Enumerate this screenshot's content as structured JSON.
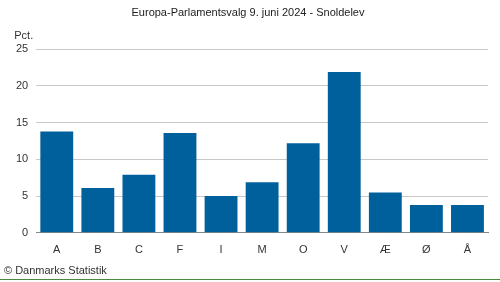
{
  "chart_data": {
    "type": "bar",
    "title": "Europa-Parlamentsvalg 9. juni 2024 - Snoldelev",
    "ylabel": "Pct.",
    "annotations": [
      "© Danmarks Statistik"
    ],
    "categories": [
      "A",
      "B",
      "C",
      "F",
      "I",
      "M",
      "O",
      "V",
      "Æ",
      "Ø",
      "Å"
    ],
    "values": [
      13.8,
      6.1,
      7.9,
      13.6,
      5.0,
      6.9,
      12.2,
      21.9,
      5.5,
      3.8,
      3.8
    ],
    "color": "#00609c",
    "ylim": [
      0,
      25
    ],
    "yticks": [
      0,
      5,
      10,
      15,
      20,
      25
    ],
    "grid": true
  }
}
